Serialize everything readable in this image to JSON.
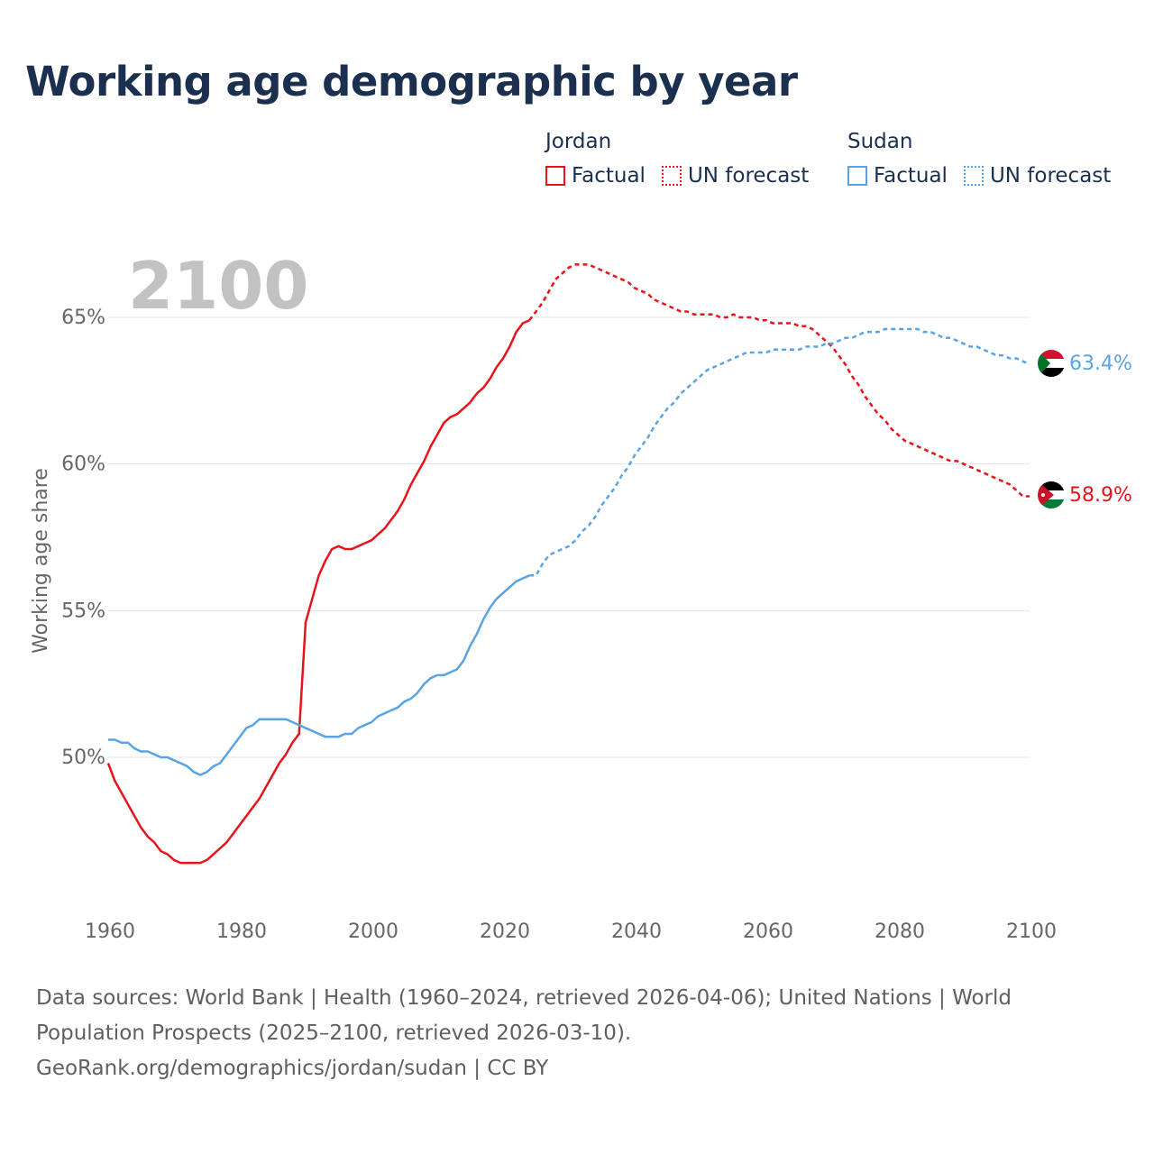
{
  "title": "Working age demographic by year",
  "legend": {
    "groups": [
      {
        "name": "Jordan",
        "factual": "Factual",
        "forecast": "UN forecast",
        "color": "#e8141c"
      },
      {
        "name": "Sudan",
        "factual": "Factual",
        "forecast": "UN forecast",
        "color": "#5aa3e4"
      }
    ]
  },
  "year_label": "2100",
  "footer": {
    "sources": "Data sources: World Bank | Health (1960–2024, retrieved 2026-04-06); United Nations | World Population Prospects (2025–2100, retrieved 2026-03-10).",
    "credit": "GeoRank.org/demographics/jordan/sudan | CC BY"
  },
  "flags": {
    "jordan": "jordan-flag-icon",
    "sudan": "sudan-flag-icon"
  },
  "chart_data": {
    "type": "line",
    "title": "Working age demographic by year",
    "xlabel": "",
    "ylabel": "Working age share",
    "xlim": [
      1960,
      2100
    ],
    "ylim": [
      45,
      67
    ],
    "xticks": [
      1960,
      1980,
      2000,
      2020,
      2040,
      2060,
      2080,
      2100
    ],
    "yticks": [
      50,
      55,
      60,
      65
    ],
    "xtick_labels": [
      "1960",
      "1980",
      "2000",
      "2020",
      "2040",
      "2060",
      "2080",
      "2100"
    ],
    "ytick_labels": [
      "50%",
      "55%",
      "60%",
      "65%"
    ],
    "grid": true,
    "factual_end_year": 2024,
    "series": [
      {
        "name": "Jordan",
        "color": "#e8141c",
        "end_label": "58.9%",
        "x": [
          1960,
          1961,
          1962,
          1963,
          1964,
          1965,
          1966,
          1967,
          1968,
          1969,
          1970,
          1971,
          1972,
          1973,
          1974,
          1975,
          1976,
          1977,
          1978,
          1979,
          1980,
          1981,
          1982,
          1983,
          1984,
          1985,
          1986,
          1987,
          1988,
          1989,
          1990,
          1991,
          1992,
          1993,
          1994,
          1995,
          1996,
          1997,
          1998,
          1999,
          2000,
          2001,
          2002,
          2003,
          2004,
          2005,
          2006,
          2007,
          2008,
          2009,
          2010,
          2011,
          2012,
          2013,
          2014,
          2015,
          2016,
          2017,
          2018,
          2019,
          2020,
          2021,
          2022,
          2023,
          2024,
          2025,
          2026,
          2027,
          2028,
          2029,
          2030,
          2031,
          2032,
          2033,
          2034,
          2035,
          2036,
          2037,
          2038,
          2039,
          2040,
          2041,
          2042,
          2043,
          2044,
          2045,
          2046,
          2047,
          2048,
          2049,
          2050,
          2051,
          2052,
          2053,
          2054,
          2055,
          2056,
          2057,
          2058,
          2059,
          2060,
          2061,
          2062,
          2063,
          2064,
          2065,
          2066,
          2067,
          2068,
          2069,
          2070,
          2071,
          2072,
          2073,
          2074,
          2075,
          2076,
          2077,
          2078,
          2079,
          2080,
          2081,
          2082,
          2083,
          2084,
          2085,
          2086,
          2087,
          2088,
          2089,
          2090,
          2091,
          2092,
          2093,
          2094,
          2095,
          2096,
          2097,
          2098,
          2099,
          2100
        ],
        "values": [
          49.8,
          49.2,
          48.8,
          48.4,
          48.0,
          47.6,
          47.3,
          47.1,
          46.8,
          46.7,
          46.5,
          46.4,
          46.4,
          46.4,
          46.4,
          46.5,
          46.7,
          46.9,
          47.1,
          47.4,
          47.7,
          48.0,
          48.3,
          48.6,
          49.0,
          49.4,
          49.8,
          50.1,
          50.5,
          50.8,
          54.6,
          55.4,
          56.2,
          56.7,
          57.1,
          57.2,
          57.1,
          57.1,
          57.2,
          57.3,
          57.4,
          57.6,
          57.8,
          58.1,
          58.4,
          58.8,
          59.3,
          59.7,
          60.1,
          60.6,
          61.0,
          61.4,
          61.6,
          61.7,
          61.9,
          62.1,
          62.4,
          62.6,
          62.9,
          63.3,
          63.6,
          64.0,
          64.5,
          64.8,
          64.9,
          65.2,
          65.5,
          65.9,
          66.3,
          66.5,
          66.7,
          66.8,
          66.8,
          66.8,
          66.7,
          66.6,
          66.5,
          66.4,
          66.3,
          66.2,
          66.0,
          65.9,
          65.8,
          65.6,
          65.5,
          65.4,
          65.3,
          65.2,
          65.2,
          65.1,
          65.1,
          65.1,
          65.1,
          65.0,
          65.0,
          65.1,
          65.0,
          65.0,
          65.0,
          64.9,
          64.9,
          64.8,
          64.8,
          64.8,
          64.8,
          64.7,
          64.7,
          64.6,
          64.4,
          64.2,
          64.0,
          63.7,
          63.4,
          63.0,
          62.7,
          62.3,
          62.0,
          61.7,
          61.5,
          61.2,
          61.0,
          60.8,
          60.7,
          60.6,
          60.5,
          60.4,
          60.3,
          60.2,
          60.1,
          60.1,
          60.0,
          59.9,
          59.8,
          59.7,
          59.6,
          59.5,
          59.4,
          59.3,
          59.1,
          58.9,
          58.9
        ]
      },
      {
        "name": "Sudan",
        "color": "#5aa3e4",
        "end_label": "63.4%",
        "x": [
          1960,
          1961,
          1962,
          1963,
          1964,
          1965,
          1966,
          1967,
          1968,
          1969,
          1970,
          1971,
          1972,
          1973,
          1974,
          1975,
          1976,
          1977,
          1978,
          1979,
          1980,
          1981,
          1982,
          1983,
          1984,
          1985,
          1986,
          1987,
          1988,
          1989,
          1990,
          1991,
          1992,
          1993,
          1994,
          1995,
          1996,
          1997,
          1998,
          1999,
          2000,
          2001,
          2002,
          2003,
          2004,
          2005,
          2006,
          2007,
          2008,
          2009,
          2010,
          2011,
          2012,
          2013,
          2014,
          2015,
          2016,
          2017,
          2018,
          2019,
          2020,
          2021,
          2022,
          2023,
          2024,
          2025,
          2026,
          2027,
          2028,
          2029,
          2030,
          2031,
          2032,
          2033,
          2034,
          2035,
          2036,
          2037,
          2038,
          2039,
          2040,
          2041,
          2042,
          2043,
          2044,
          2045,
          2046,
          2047,
          2048,
          2049,
          2050,
          2051,
          2052,
          2053,
          2054,
          2055,
          2056,
          2057,
          2058,
          2059,
          2060,
          2061,
          2062,
          2063,
          2064,
          2065,
          2066,
          2067,
          2068,
          2069,
          2070,
          2071,
          2072,
          2073,
          2074,
          2075,
          2076,
          2077,
          2078,
          2079,
          2080,
          2081,
          2082,
          2083,
          2084,
          2085,
          2086,
          2087,
          2088,
          2089,
          2090,
          2091,
          2092,
          2093,
          2094,
          2095,
          2096,
          2097,
          2098,
          2099,
          2100
        ],
        "values": [
          50.6,
          50.6,
          50.5,
          50.5,
          50.3,
          50.2,
          50.2,
          50.1,
          50.0,
          50.0,
          49.9,
          49.8,
          49.7,
          49.5,
          49.4,
          49.5,
          49.7,
          49.8,
          50.1,
          50.4,
          50.7,
          51.0,
          51.1,
          51.3,
          51.3,
          51.3,
          51.3,
          51.3,
          51.2,
          51.1,
          51.0,
          50.9,
          50.8,
          50.7,
          50.7,
          50.7,
          50.8,
          50.8,
          51.0,
          51.1,
          51.2,
          51.4,
          51.5,
          51.6,
          51.7,
          51.9,
          52.0,
          52.2,
          52.5,
          52.7,
          52.8,
          52.8,
          52.9,
          53.0,
          53.3,
          53.8,
          54.2,
          54.7,
          55.1,
          55.4,
          55.6,
          55.8,
          56.0,
          56.1,
          56.2,
          56.2,
          56.6,
          56.9,
          57.0,
          57.1,
          57.2,
          57.4,
          57.7,
          57.9,
          58.2,
          58.6,
          58.9,
          59.2,
          59.6,
          59.9,
          60.3,
          60.6,
          60.9,
          61.3,
          61.6,
          61.9,
          62.1,
          62.4,
          62.6,
          62.8,
          63.0,
          63.2,
          63.3,
          63.4,
          63.5,
          63.6,
          63.7,
          63.8,
          63.8,
          63.8,
          63.8,
          63.9,
          63.9,
          63.9,
          63.9,
          63.9,
          64.0,
          64.0,
          64.0,
          64.1,
          64.1,
          64.2,
          64.3,
          64.3,
          64.4,
          64.5,
          64.5,
          64.5,
          64.6,
          64.6,
          64.6,
          64.6,
          64.6,
          64.6,
          64.5,
          64.5,
          64.4,
          64.3,
          64.3,
          64.2,
          64.1,
          64.0,
          64.0,
          63.9,
          63.8,
          63.7,
          63.7,
          63.6,
          63.6,
          63.5,
          63.4
        ]
      }
    ]
  }
}
